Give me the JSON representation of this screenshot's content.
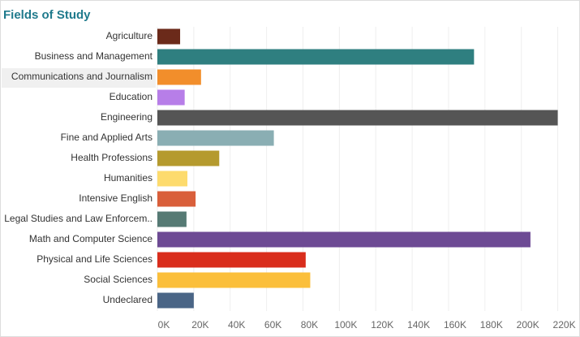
{
  "chart_data": {
    "type": "bar",
    "orientation": "horizontal",
    "title": "Fields of Study",
    "categories": [
      "Agriculture",
      "Business and Management",
      "Communications and Journalism",
      "Education",
      "Engineering",
      "Fine and Applied Arts",
      "Health Professions",
      "Humanities",
      "Intensive English",
      "Legal Studies and Law Enforcem..",
      "Math and Computer Science",
      "Physical and Life Sciences",
      "Social Sciences",
      "Undeclared"
    ],
    "values": [
      12500,
      174000,
      24000,
      15000,
      220000,
      64000,
      34000,
      16500,
      21000,
      16000,
      205000,
      81500,
      84000,
      20000
    ],
    "colors": [
      "#6b2a1a",
      "#2f7f80",
      "#f28e2b",
      "#b77ee8",
      "#555555",
      "#8aaeb3",
      "#b59a2e",
      "#fddb6d",
      "#d95f3b",
      "#567a74",
      "#6d4a94",
      "#d92d1c",
      "#fbbf3b",
      "#4a6586"
    ],
    "xlim": [
      0,
      230000
    ],
    "xticks": [
      {
        "value": 0,
        "label": "0K"
      },
      {
        "value": 20000,
        "label": "20K"
      },
      {
        "value": 40000,
        "label": "40K"
      },
      {
        "value": 60000,
        "label": "60K"
      },
      {
        "value": 80000,
        "label": "80K"
      },
      {
        "value": 100000,
        "label": "100K"
      },
      {
        "value": 120000,
        "label": "120K"
      },
      {
        "value": 140000,
        "label": "140K"
      },
      {
        "value": 160000,
        "label": "160K"
      },
      {
        "value": 180000,
        "label": "180K"
      },
      {
        "value": 200000,
        "label": "200K"
      },
      {
        "value": 220000,
        "label": "220K"
      }
    ],
    "grid": true
  }
}
